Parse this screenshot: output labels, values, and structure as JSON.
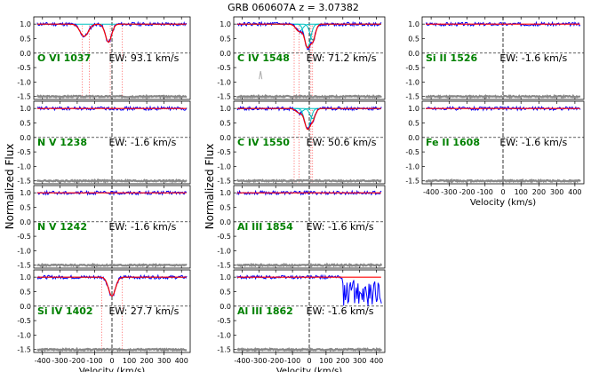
{
  "figure": {
    "title": "GRB 060607A  z = 3.07382",
    "ylabel": "Normalized Flux",
    "xlabel": "Velocity (km/s)"
  },
  "colors": {
    "data": "#0000ff",
    "model": "#ff0000",
    "component": "#00c0c0",
    "line_label": "#008000",
    "error": "#888888"
  },
  "chart_data": {
    "type": "line",
    "xlim": [
      -450,
      450
    ],
    "ylim": [
      -1.6,
      1.25
    ],
    "x_ticks": [
      -400,
      -300,
      -200,
      -100,
      0,
      100,
      200,
      300,
      400
    ],
    "x_tick_labels": [
      "-400",
      "-300",
      "-200",
      "-100",
      "0",
      "100",
      "200",
      "300",
      "400"
    ],
    "y_ticks": [
      1.0,
      0.5,
      0.0,
      -0.5,
      -1.0,
      -1.5
    ],
    "y_tick_labels": [
      "1.0",
      "0.5",
      "0.0",
      "-0.5",
      "-1.0",
      "-1.5"
    ],
    "panels": [
      {
        "col": 0,
        "row": 0,
        "line": "O VI 1037",
        "ew": "EW: 93.1 km/s",
        "components": [
          {
            "v": -160,
            "depth": 0.42,
            "width": 24
          },
          {
            "v": -20,
            "depth": 0.62,
            "width": 18
          }
        ],
        "markers": [
          -170,
          -130,
          -10,
          60
        ],
        "noise_spikes": []
      },
      {
        "col": 0,
        "row": 1,
        "line": "N V 1238",
        "ew": "EW: -1.6 km/s",
        "components": [],
        "markers": [],
        "noise_spikes": []
      },
      {
        "col": 0,
        "row": 2,
        "line": "N V 1242",
        "ew": "EW: -1.6 km/s",
        "components": [],
        "markers": [],
        "noise_spikes": []
      },
      {
        "col": 0,
        "row": 3,
        "line": "Si IV 1402",
        "ew": "EW: 27.7 km/s",
        "components": [
          {
            "v": 0,
            "depth": 0.65,
            "width": 20
          }
        ],
        "markers": [
          -60,
          60
        ],
        "noise_spikes": []
      },
      {
        "col": 1,
        "row": 0,
        "line": "C IV 1548",
        "ew": "EW: 71.2 km/s",
        "components": [
          {
            "v": -60,
            "depth": 0.25,
            "width": 20
          },
          {
            "v": -10,
            "depth": 0.8,
            "width": 18
          },
          {
            "v": 20,
            "depth": 0.55,
            "width": 16
          }
        ],
        "markers": [
          -90,
          -60,
          10,
          20
        ],
        "noise_spikes": [
          {
            "v": -290,
            "height": 0.28
          }
        ]
      },
      {
        "col": 1,
        "row": 1,
        "line": "C IV 1550",
        "ew": "EW: 50.6 km/s",
        "components": [
          {
            "v": -60,
            "depth": 0.15,
            "width": 20
          },
          {
            "v": -10,
            "depth": 0.7,
            "width": 18
          },
          {
            "v": 20,
            "depth": 0.35,
            "width": 16
          }
        ],
        "markers": [
          -90,
          -60,
          10,
          20
        ],
        "noise_spikes": []
      },
      {
        "col": 1,
        "row": 2,
        "line": "Al III 1854",
        "ew": "EW: -1.6 km/s",
        "components": [],
        "markers": [],
        "noise_spikes": []
      },
      {
        "col": 1,
        "row": 3,
        "line": "Al III 1862",
        "ew": "EW: -1.6 km/s",
        "components": [],
        "markers": [],
        "noise_spikes": [],
        "bad_region_from": 200
      },
      {
        "col": 2,
        "row": 0,
        "line": "Si II 1526",
        "ew": "EW: -1.6 km/s",
        "components": [],
        "markers": [],
        "noise_spikes": []
      },
      {
        "col": 2,
        "row": 1,
        "line": "Fe II 1608",
        "ew": "EW: -1.6 km/s",
        "components": [],
        "markers": [],
        "noise_spikes": []
      }
    ]
  }
}
